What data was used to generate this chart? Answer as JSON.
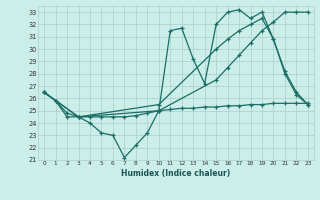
{
  "background_color": "#cbeee8",
  "grid_color": "#aacccc",
  "line_color": "#1a6e65",
  "xlabel": "Humidex (Indice chaleur)",
  "xlim": [
    0,
    23
  ],
  "ylim": [
    21,
    33.5
  ],
  "line1_x": [
    0,
    1,
    2,
    3,
    4,
    5,
    6,
    7,
    8,
    9,
    10,
    11,
    12,
    13,
    14,
    15,
    16,
    17,
    18,
    19,
    20,
    21,
    22,
    23
  ],
  "line1_y": [
    26.5,
    25.8,
    24.5,
    24.5,
    24.0,
    23.2,
    23.0,
    21.2,
    22.2,
    23.2,
    25.0,
    31.5,
    31.7,
    29.2,
    27.2,
    32.0,
    33.0,
    33.2,
    32.5,
    33.0,
    30.8,
    28.0,
    26.3,
    25.5
  ],
  "line2_x": [
    0,
    3,
    10,
    15,
    16,
    17,
    18,
    19,
    20,
    21,
    22,
    23
  ],
  "line2_y": [
    26.5,
    24.5,
    25.5,
    30.0,
    30.8,
    31.5,
    32.0,
    32.5,
    30.8,
    28.2,
    26.5,
    25.5
  ],
  "line3_x": [
    0,
    3,
    10,
    15,
    16,
    17,
    18,
    19,
    20,
    21,
    22,
    23
  ],
  "line3_y": [
    26.5,
    24.5,
    25.0,
    27.5,
    28.5,
    29.5,
    30.5,
    31.5,
    32.2,
    33.0,
    33.0,
    33.0
  ],
  "line4_x": [
    0,
    1,
    2,
    3,
    4,
    5,
    6,
    7,
    8,
    9,
    10,
    11,
    12,
    13,
    14,
    15,
    16,
    17,
    18,
    19,
    20,
    21,
    22,
    23
  ],
  "line4_y": [
    26.5,
    25.8,
    24.8,
    24.5,
    24.5,
    24.5,
    24.5,
    24.5,
    24.6,
    24.8,
    25.0,
    25.1,
    25.2,
    25.2,
    25.3,
    25.3,
    25.4,
    25.4,
    25.5,
    25.5,
    25.6,
    25.6,
    25.6,
    25.6
  ]
}
